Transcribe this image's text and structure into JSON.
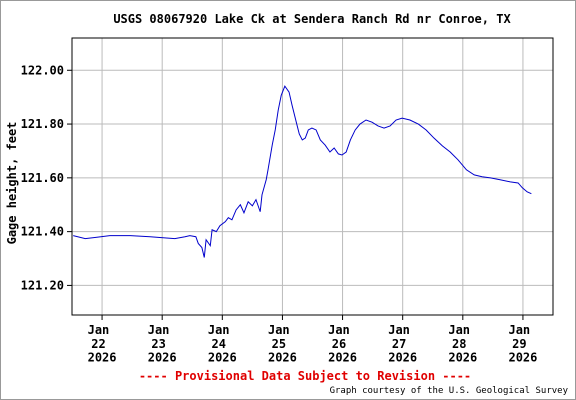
{
  "chart_data": {
    "type": "line",
    "title": "USGS 08067920 Lake Ck at Sendera Ranch Rd nr Conroe, TX",
    "y_label": "Gage height, feet",
    "notice": "---- Provisional Data Subject to Revision ----",
    "credit": "Graph courtesy of the U.S. Geological Survey",
    "grid": true,
    "xlim": [
      21.5,
      29.5
    ],
    "xticks": [
      {
        "value": 22,
        "label": "Jan\n22\n2026"
      },
      {
        "value": 23,
        "label": "Jan\n23\n2026"
      },
      {
        "value": 24,
        "label": "Jan\n24\n2026"
      },
      {
        "value": 25,
        "label": "Jan\n25\n2026"
      },
      {
        "value": 26,
        "label": "Jan\n26\n2026"
      },
      {
        "value": 27,
        "label": "Jan\n27\n2026"
      },
      {
        "value": 28,
        "label": "Jan\n28\n2026"
      },
      {
        "value": 29,
        "label": "Jan\n29\n2026"
      }
    ],
    "ylim": [
      121.09,
      122.12
    ],
    "yticks": [
      {
        "value": 121.2,
        "label": "121.20"
      },
      {
        "value": 121.4,
        "label": "121.40"
      },
      {
        "value": 121.6,
        "label": "121.60"
      },
      {
        "value": 121.8,
        "label": "121.80"
      },
      {
        "value": 122.0,
        "label": "122.00"
      }
    ],
    "series": [
      {
        "color": "#0000cc",
        "x": [
          21.52,
          21.72,
          21.88,
          22.13,
          22.47,
          22.8,
          22.96,
          23.21,
          23.38,
          23.46,
          23.56,
          23.6,
          23.66,
          23.7,
          23.73,
          23.8,
          23.83,
          23.9,
          23.96,
          24.05,
          24.1,
          24.16,
          24.23,
          24.3,
          24.36,
          24.43,
          24.5,
          24.56,
          24.63,
          24.66,
          24.73,
          24.76,
          24.83,
          24.88,
          24.93,
          24.98,
          25.04,
          25.11,
          25.16,
          25.23,
          25.28,
          25.33,
          25.38,
          25.43,
          25.49,
          25.56,
          25.63,
          25.71,
          25.79,
          25.86,
          25.93,
          25.99,
          26.06,
          26.13,
          26.21,
          26.29,
          26.39,
          26.49,
          26.59,
          26.69,
          26.79,
          26.89,
          26.99,
          27.12,
          27.26,
          27.39,
          27.52,
          27.66,
          27.79,
          27.92,
          28.06,
          28.19,
          28.32,
          28.46,
          28.62,
          28.79,
          28.92,
          28.99,
          29.07,
          29.14
        ],
        "values": [
          121.385,
          121.374,
          121.378,
          121.385,
          121.385,
          121.381,
          121.378,
          121.374,
          121.381,
          121.385,
          121.381,
          121.356,
          121.341,
          121.304,
          121.37,
          121.348,
          121.407,
          121.4,
          121.422,
          121.437,
          121.452,
          121.444,
          121.481,
          121.5,
          121.47,
          121.511,
          121.496,
          121.519,
          121.474,
          121.537,
          121.593,
          121.63,
          121.722,
          121.778,
          121.852,
          121.907,
          121.941,
          121.919,
          121.87,
          121.807,
          121.763,
          121.741,
          121.748,
          121.778,
          121.785,
          121.778,
          121.741,
          121.722,
          121.696,
          121.711,
          121.689,
          121.685,
          121.696,
          121.741,
          121.778,
          121.8,
          121.815,
          121.807,
          121.793,
          121.785,
          121.793,
          121.815,
          121.822,
          121.815,
          121.8,
          121.778,
          121.748,
          121.719,
          121.696,
          121.667,
          121.63,
          121.611,
          121.604,
          121.6,
          121.593,
          121.585,
          121.581,
          121.563,
          121.548,
          121.541
        ]
      }
    ]
  }
}
